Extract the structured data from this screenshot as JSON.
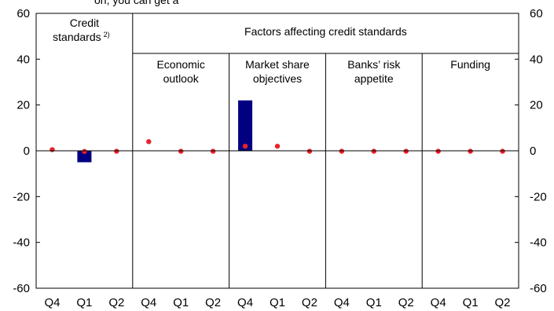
{
  "chart_data": {
    "type": "bar",
    "title_fragment": "on, you can get a",
    "ylim": [
      -60,
      60
    ],
    "yticks": [
      60,
      40,
      20,
      0,
      -20,
      -40,
      -60
    ],
    "categories": [
      "Q4",
      "Q1",
      "Q2",
      "Q4",
      "Q1",
      "Q2",
      "Q4",
      "Q1",
      "Q2",
      "Q4",
      "Q1",
      "Q2",
      "Q4",
      "Q1",
      "Q2"
    ],
    "top_header": "Factors affecting credit standards",
    "groups": [
      {
        "label": "Credit standards",
        "superscript": "2)"
      },
      {
        "label_lines": [
          "Economic",
          "outlook"
        ]
      },
      {
        "label_lines": [
          "Market share",
          "objectives"
        ]
      },
      {
        "label_lines": [
          "Banks’ risk",
          "appetite"
        ]
      },
      {
        "label_lines": [
          "Funding"
        ]
      }
    ],
    "series": [
      {
        "type": "bar",
        "color": "#000080",
        "values": [
          0,
          -5,
          0,
          0,
          0,
          0,
          22,
          0,
          0,
          0,
          0,
          0,
          0,
          0,
          0
        ]
      },
      {
        "type": "scatter",
        "color": "#e8222a",
        "values": [
          0.5,
          -0.3,
          -0.2,
          4,
          -0.2,
          -0.2,
          2,
          2,
          -0.2,
          -0.2,
          -0.2,
          -0.2,
          -0.2,
          -0.2,
          -0.2
        ]
      }
    ]
  }
}
